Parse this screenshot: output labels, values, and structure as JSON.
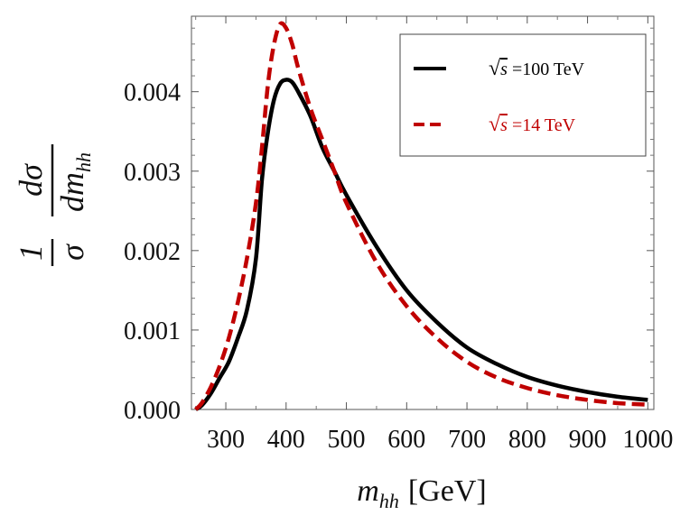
{
  "chart_data": {
    "type": "line",
    "title": "",
    "xlabel": {
      "base": "m",
      "sub": "hh",
      "units": "[GeV]"
    },
    "ylabel": {
      "numerator": "1",
      "denominator_sigma": "σ",
      "d_sigma": "dσ",
      "denominator_dm": "dm",
      "sub": "hh"
    },
    "xlim": [
      243,
      1010
    ],
    "ylim": [
      0,
      0.00495
    ],
    "x_ticks": [
      300,
      400,
      500,
      600,
      700,
      800,
      900,
      1000
    ],
    "x_tick_labels": [
      "300",
      "400",
      "500",
      "600",
      "700",
      "800",
      "900",
      "1000"
    ],
    "y_ticks": [
      0,
      0.001,
      0.002,
      0.003,
      0.004
    ],
    "y_tick_labels": [
      "0.000",
      "0.001",
      "0.002",
      "0.003",
      "0.004"
    ],
    "legend": {
      "position": "top-right",
      "entries": [
        {
          "prefix": "√",
          "var": "s",
          "suffix": " =100 TeV",
          "color": "#000000",
          "style": "solid"
        },
        {
          "prefix": "√",
          "var": "s",
          "suffix": " =14 TeV",
          "color": "#c00000",
          "style": "dashed"
        }
      ]
    },
    "series": [
      {
        "name": "√s =100 TeV",
        "color": "#000000",
        "style": "solid",
        "x": [
          250,
          260,
          275,
          290,
          305,
          320,
          335,
          350,
          360,
          370,
          380,
          390,
          400,
          410,
          420,
          440,
          460,
          480,
          500,
          550,
          600,
          650,
          700,
          750,
          800,
          850,
          900,
          950,
          1000
        ],
        "y": [
          0.0,
          5e-05,
          0.0002,
          0.0004,
          0.0006,
          0.0009,
          0.00125,
          0.0019,
          0.0029,
          0.0035,
          0.0039,
          0.0041,
          0.00415,
          0.00412,
          0.004,
          0.0037,
          0.0033,
          0.003,
          0.0027,
          0.00205,
          0.0015,
          0.0011,
          0.00078,
          0.00057,
          0.00041,
          0.0003,
          0.00022,
          0.00016,
          0.00012
        ]
      },
      {
        "name": "√s =14 TeV",
        "color": "#c00000",
        "style": "dashed",
        "x": [
          250,
          260,
          275,
          290,
          305,
          320,
          335,
          350,
          360,
          370,
          380,
          390,
          400,
          410,
          420,
          440,
          460,
          480,
          500,
          550,
          600,
          650,
          700,
          750,
          800,
          850,
          900,
          950,
          1000
        ],
        "y": [
          0.0,
          8e-05,
          0.00028,
          0.00055,
          0.0009,
          0.00135,
          0.0019,
          0.0026,
          0.0033,
          0.0041,
          0.0046,
          0.00485,
          0.0048,
          0.0046,
          0.0043,
          0.0038,
          0.0034,
          0.003,
          0.0026,
          0.00185,
          0.0013,
          0.0009,
          0.0006,
          0.0004,
          0.00027,
          0.00018,
          0.00012,
          8e-05,
          6e-05
        ]
      }
    ]
  }
}
